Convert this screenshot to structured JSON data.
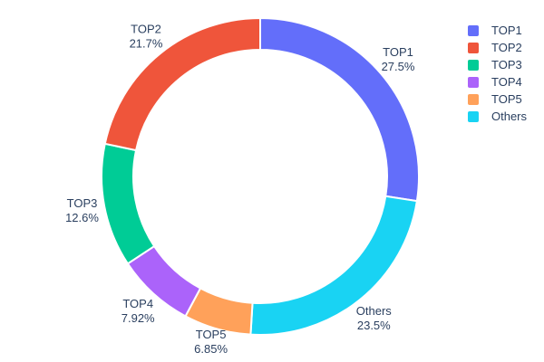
{
  "page": {
    "background": "#ffffff",
    "text_color": "#2a3f5f"
  },
  "chart_data": {
    "type": "pie",
    "subtype": "donut",
    "title": "",
    "hole": 0.8,
    "direction": "clockwise",
    "start_angle_deg": 0,
    "labels_outside": true,
    "grid": false,
    "legend_position": "top-right",
    "categories": [
      "TOP1",
      "TOP2",
      "TOP3",
      "TOP4",
      "TOP5",
      "Others"
    ],
    "values_percent": [
      27.5,
      21.7,
      12.6,
      7.92,
      6.85,
      23.5
    ],
    "display_percent": [
      "27.5%",
      "21.7%",
      "12.6%",
      "7.92%",
      "6.85%",
      "23.5%"
    ],
    "colors": [
      "#636EFA",
      "#EF553B",
      "#00CC96",
      "#AB63FA",
      "#FFA15A",
      "#19D3F3"
    ],
    "clockwise_slice_order": [
      "TOP1",
      "Others",
      "TOP5",
      "TOP4",
      "TOP3",
      "TOP2"
    ],
    "slice_gap_color": "#ffffff"
  },
  "legend": {
    "items": [
      {
        "label": "TOP1",
        "color": "#636EFA"
      },
      {
        "label": "TOP2",
        "color": "#EF553B"
      },
      {
        "label": "TOP3",
        "color": "#00CC96"
      },
      {
        "label": "TOP4",
        "color": "#AB63FA"
      },
      {
        "label": "TOP5",
        "color": "#FFA15A"
      },
      {
        "label": "Others",
        "color": "#19D3F3"
      }
    ]
  }
}
